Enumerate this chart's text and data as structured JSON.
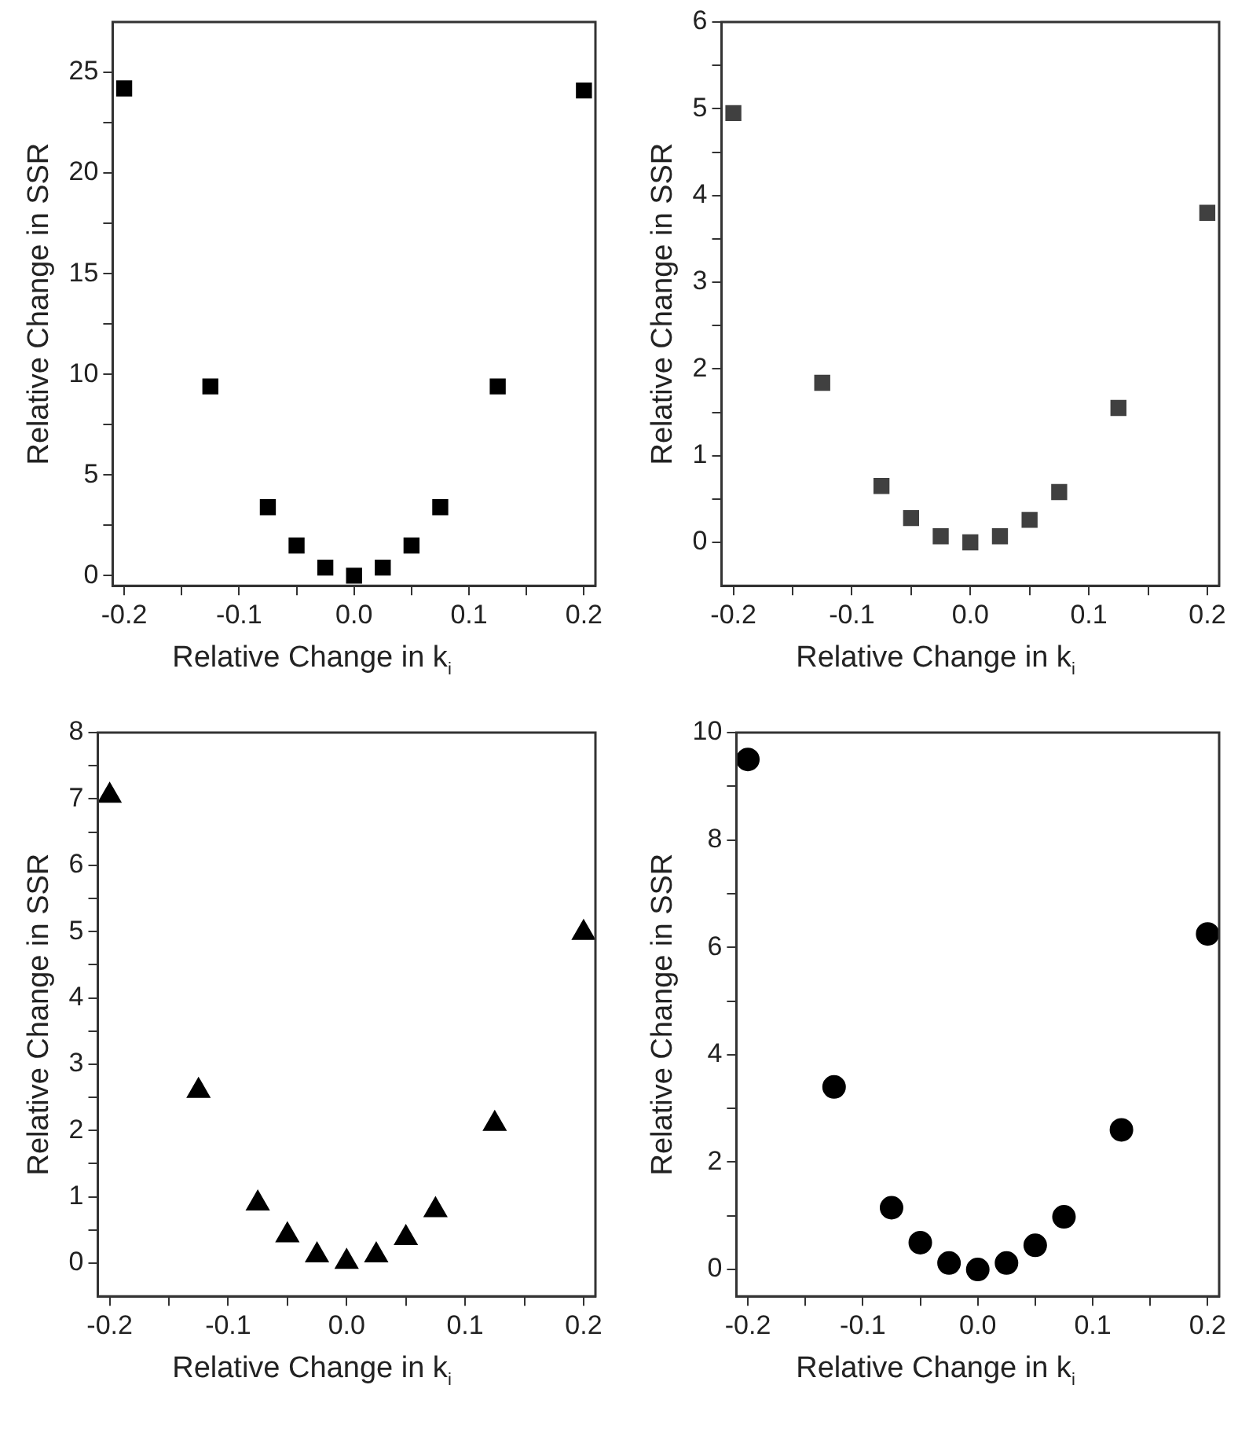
{
  "chart_data": [
    {
      "type": "scatter",
      "xlabel": "Relative Change in k$_{i}$",
      "ylabel": "Relative Change in SSR",
      "marker": "square",
      "x": [
        -0.2,
        -0.125,
        -0.075,
        -0.05,
        -0.025,
        0,
        0.025,
        0.05,
        0.075,
        0.125,
        0.2
      ],
      "series": [
        {
          "color": "#000000",
          "values": [
            24.2,
            9.4,
            3.4,
            1.5,
            0.4,
            0,
            0.4,
            1.5,
            3.4,
            9.4,
            24.1
          ]
        }
      ],
      "xlim": [
        -0.21,
        0.21
      ],
      "ylim": [
        -0.5,
        27.5
      ],
      "xticks": [
        -0.2,
        {
          "value": -0.15,
          "label": null
        },
        -0.1,
        {
          "value": -0.05,
          "label": null
        },
        {
          "value": 0,
          "label": "0.0"
        },
        {
          "value": 0.05,
          "label": null
        },
        0.1,
        {
          "value": 0.15,
          "label": null
        },
        0.2
      ],
      "yticks": [
        0,
        {
          "value": 2.5,
          "label": null
        },
        5,
        {
          "value": 7.5,
          "label": null
        },
        10,
        {
          "value": 12.5,
          "label": null
        },
        15,
        {
          "value": 17.5,
          "label": null
        },
        20,
        {
          "value": 22.5,
          "label": null
        },
        25
      ]
    },
    {
      "type": "scatter",
      "xlabel": "Relative Change in k$_{i}$",
      "ylabel": "Relative Change in SSR",
      "marker": "square",
      "x": [
        -0.2,
        -0.125,
        -0.075,
        -0.05,
        -0.025,
        0,
        0.025,
        0.05,
        0.075,
        0.125,
        0.2
      ],
      "series": [
        {
          "color": "#404040",
          "values": [
            4.95,
            1.84,
            0.65,
            0.28,
            0.07,
            0,
            0.07,
            0.26,
            0.58,
            1.55,
            3.8
          ]
        }
      ],
      "xlim": [
        -0.21,
        0.21
      ],
      "ylim": [
        -0.5,
        6
      ],
      "xticks": [
        -0.2,
        {
          "value": -0.15,
          "label": null
        },
        -0.1,
        {
          "value": -0.05,
          "label": null
        },
        {
          "value": 0,
          "label": "0.0"
        },
        {
          "value": 0.05,
          "label": null
        },
        0.1,
        {
          "value": 0.15,
          "label": null
        },
        0.2
      ],
      "yticks": [
        0,
        {
          "value": 0.5,
          "label": null
        },
        1,
        {
          "value": 1.5,
          "label": null
        },
        2,
        {
          "value": 2.5,
          "label": null
        },
        3,
        {
          "value": 3.5,
          "label": null
        },
        4,
        {
          "value": 4.5,
          "label": null
        },
        5,
        {
          "value": 5.5,
          "label": null
        },
        6
      ]
    },
    {
      "type": "scatter",
      "xlabel": "Relative Change in k$_{i}$",
      "ylabel": "Relative Change in SSR",
      "marker": "triangle",
      "x": [
        -0.2,
        -0.125,
        -0.075,
        -0.05,
        -0.025,
        0,
        0.025,
        0.05,
        0.075,
        0.125,
        0.2
      ],
      "series": [
        {
          "color": "#000000",
          "values": [
            7.05,
            2.6,
            0.9,
            0.42,
            0.12,
            0.02,
            0.12,
            0.38,
            0.8,
            2.1,
            4.98
          ]
        }
      ],
      "xlim": [
        -0.21,
        0.21
      ],
      "ylim": [
        -0.5,
        8
      ],
      "xticks": [
        -0.2,
        {
          "value": -0.15,
          "label": null
        },
        -0.1,
        {
          "value": -0.05,
          "label": null
        },
        {
          "value": 0,
          "label": "0.0"
        },
        {
          "value": 0.05,
          "label": null
        },
        0.1,
        {
          "value": 0.15,
          "label": null
        },
        0.2
      ],
      "yticks": [
        0,
        {
          "value": 0.5,
          "label": null
        },
        1,
        {
          "value": 1.5,
          "label": null
        },
        2,
        {
          "value": 2.5,
          "label": null
        },
        3,
        {
          "value": 3.5,
          "label": null
        },
        4,
        {
          "value": 4.5,
          "label": null
        },
        5,
        {
          "value": 5.5,
          "label": null
        },
        6,
        {
          "value": 6.5,
          "label": null
        },
        7,
        {
          "value": 7.5,
          "label": null
        },
        8
      ]
    },
    {
      "type": "scatter",
      "xlabel": "Relative Change in k$_{i}$",
      "ylabel": "Relative Change in SSR",
      "marker": "circle",
      "x": [
        -0.2,
        -0.125,
        -0.075,
        -0.05,
        -0.025,
        0,
        0.025,
        0.05,
        0.075,
        0.125,
        0.2
      ],
      "series": [
        {
          "color": "#000000",
          "values": [
            9.5,
            3.4,
            1.15,
            0.5,
            0.12,
            0,
            0.12,
            0.45,
            0.98,
            2.6,
            6.25
          ]
        }
      ],
      "xlim": [
        -0.21,
        0.21
      ],
      "ylim": [
        -0.5,
        10
      ],
      "xticks": [
        -0.2,
        {
          "value": -0.15,
          "label": null
        },
        -0.1,
        {
          "value": -0.05,
          "label": null
        },
        {
          "value": 0,
          "label": "0.0"
        },
        {
          "value": 0.05,
          "label": null
        },
        0.1,
        {
          "value": 0.15,
          "label": null
        },
        0.2
      ],
      "yticks": [
        0,
        {
          "value": 1,
          "label": null
        },
        2,
        {
          "value": 3,
          "label": null
        },
        4,
        {
          "value": 5,
          "label": null
        },
        6,
        {
          "value": 7,
          "label": null
        },
        8,
        {
          "value": 9,
          "label": null
        },
        10
      ]
    }
  ]
}
